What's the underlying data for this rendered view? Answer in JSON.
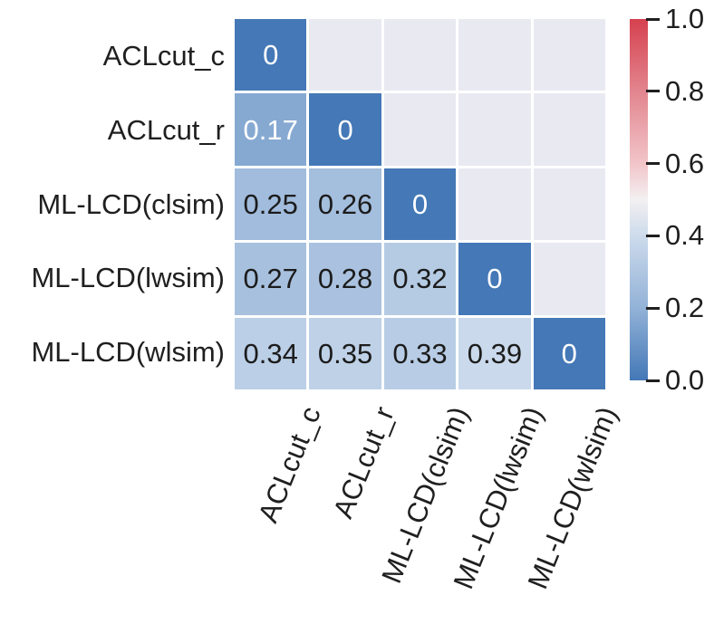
{
  "figure": {
    "background": "#ffffff",
    "axes_background": "#e9e9f1",
    "grid_line_color": "#ffffff",
    "text_color": "#1f1f1f"
  },
  "chart_data": {
    "type": "heatmap",
    "title": "",
    "description": "Lower-triangular distance/dissimilarity heatmap between community detection methods, blue-white-red diverging colormap, masked upper triangle",
    "categories": [
      "ACLcut_c",
      "ACLcut_r",
      "ML-LCD(clsim)",
      "ML-LCD(lwsim)",
      "ML-LCD(wlsim)"
    ],
    "matrix": [
      [
        0,
        null,
        null,
        null,
        null
      ],
      [
        0.17,
        0,
        null,
        null,
        null
      ],
      [
        0.25,
        0.26,
        0,
        null,
        null
      ],
      [
        0.27,
        0.28,
        0.32,
        0,
        null
      ],
      [
        0.34,
        0.35,
        0.33,
        0.39,
        0
      ]
    ],
    "cell_labels": [
      [
        "0",
        "",
        "",
        "",
        ""
      ],
      [
        "0.17",
        "0",
        "",
        "",
        ""
      ],
      [
        "0.25",
        "0.26",
        "0",
        "",
        ""
      ],
      [
        "0.27",
        "0.28",
        "0.32",
        "0",
        ""
      ],
      [
        "0.34",
        "0.35",
        "0.33",
        "0.39",
        "0"
      ]
    ],
    "vmin": 0.0,
    "vmax": 1.0,
    "masked": "upper-triangle",
    "legend_position": "right-colorbar",
    "colorbar": {
      "tick_labels": [
        "1.0",
        "0.8",
        "0.6",
        "0.4",
        "0.2",
        "0.0"
      ]
    },
    "colormap_stops": [
      {
        "v": 0.0,
        "color": "#4478b7"
      },
      {
        "v": 0.2,
        "color": "#92b2d7"
      },
      {
        "v": 0.4,
        "color": "#cddbec"
      },
      {
        "v": 0.5,
        "color": "#f3f0f1"
      },
      {
        "v": 0.6,
        "color": "#f2c5c9"
      },
      {
        "v": 0.8,
        "color": "#e2858e"
      },
      {
        "v": 1.0,
        "color": "#d6414f"
      }
    ],
    "annotation_colors": {
      "white_text": "#ffffff",
      "dark_text": "#1c1c1c",
      "white_text_below": 0.2
    }
  }
}
